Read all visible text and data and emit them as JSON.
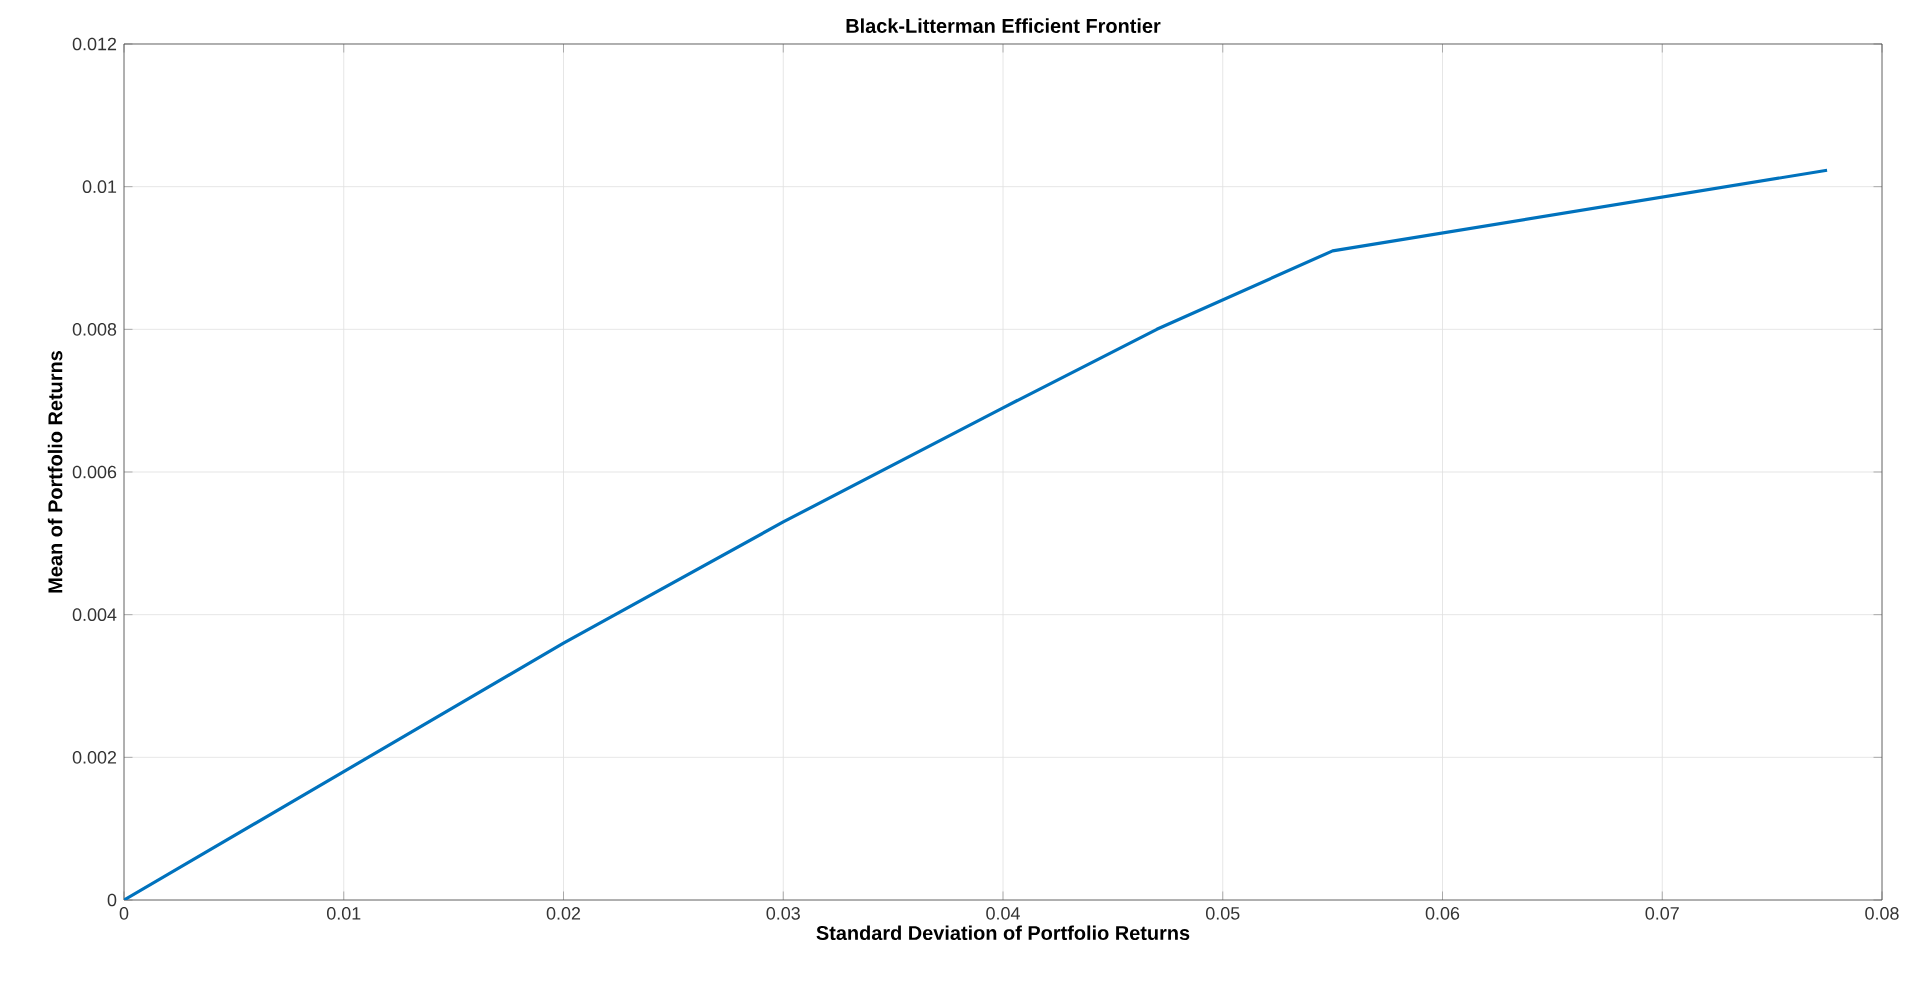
{
  "chart_data": {
    "type": "line",
    "title": "Black-Litterman Efficient Frontier",
    "xlabel": "Standard Deviation of Portfolio Returns",
    "ylabel": "Mean of Portfolio Returns",
    "series": [
      {
        "color": "#0072bd",
        "x": [
          0,
          0.01,
          0.02,
          0.03,
          0.04,
          0.047,
          0.055,
          0.0775
        ],
        "values": [
          0,
          0.0018,
          0.0036,
          0.0053,
          0.0069,
          0.008,
          0.0091,
          0.01023
        ]
      }
    ],
    "xlim": [
      0,
      0.08
    ],
    "ylim": [
      0,
      0.012
    ],
    "xticks": [
      0,
      0.01,
      0.02,
      0.03,
      0.04,
      0.05,
      0.06,
      0.07,
      0.08
    ],
    "yticks": [
      0,
      0.002,
      0.004,
      0.006,
      0.008,
      0.01,
      0.012
    ],
    "grid": true,
    "marker": "none",
    "line_style": "solid"
  }
}
